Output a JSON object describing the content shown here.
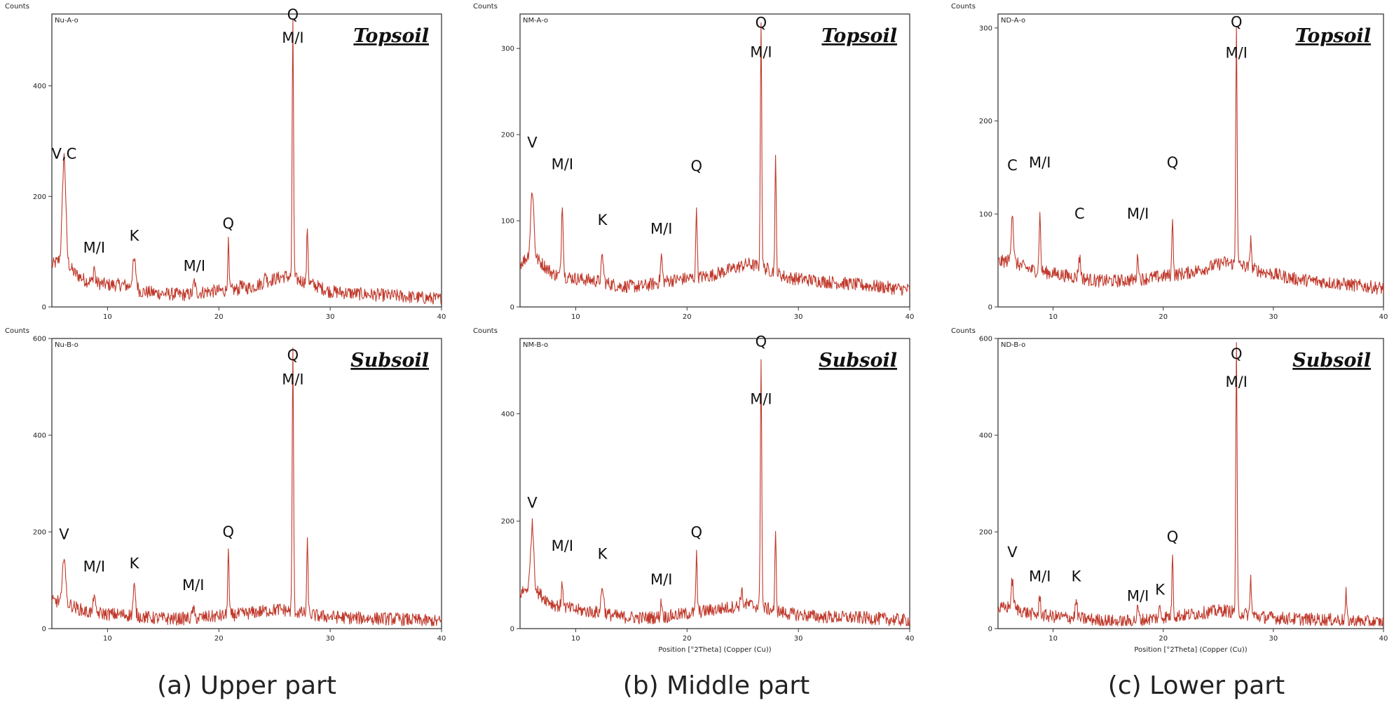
{
  "colors": {
    "trace": "#c0392b",
    "axis": "#3a3a3a",
    "text": "#222222"
  },
  "chart_data": [
    {
      "type": "line",
      "panel": "(a) Upper part",
      "code": "Nu-A-o",
      "soil_label": "Topsoil",
      "ylabel": "Counts",
      "xlabel": "",
      "xlim": [
        5,
        40
      ],
      "ylim": [
        0,
        530
      ],
      "yticks": [
        0,
        200,
        400
      ],
      "xticks": [
        10,
        20,
        30,
        40
      ],
      "base": [
        [
          5,
          75
        ],
        [
          6,
          90
        ],
        [
          7,
          62
        ],
        [
          8,
          48
        ],
        [
          10,
          40
        ],
        [
          11.5,
          40
        ],
        [
          13,
          28
        ],
        [
          15,
          24
        ],
        [
          17,
          22
        ],
        [
          19,
          28
        ],
        [
          21,
          30
        ],
        [
          23,
          36
        ],
        [
          24.5,
          48
        ],
        [
          26,
          56
        ],
        [
          28,
          44
        ],
        [
          30,
          28
        ],
        [
          33,
          23
        ],
        [
          36,
          20
        ],
        [
          40,
          14
        ]
      ],
      "peaks": [
        [
          6.1,
          185,
          0.15
        ],
        [
          8.8,
          30,
          0.07
        ],
        [
          12.4,
          50,
          0.16
        ],
        [
          17.8,
          22,
          0.09
        ],
        [
          20.85,
          85,
          0.06
        ],
        [
          26.65,
          470,
          0.06
        ],
        [
          27.95,
          100,
          0.06
        ],
        [
          22.0,
          15,
          0.06
        ],
        [
          24.2,
          18,
          0.06
        ]
      ],
      "annotations": [
        {
          "text": "V,C",
          "x": 6.1,
          "y": 268
        },
        {
          "text": "M/I",
          "x": 8.8,
          "y": 98
        },
        {
          "text": "K",
          "x": 12.4,
          "y": 120
        },
        {
          "text": "M/I",
          "x": 17.8,
          "y": 65
        },
        {
          "text": "Q",
          "x": 20.85,
          "y": 142
        },
        {
          "text": "Q",
          "x": 26.65,
          "y": 520
        },
        {
          "text": "M/I",
          "x": 26.65,
          "y": 478
        }
      ]
    },
    {
      "type": "line",
      "panel": "(b) Middle part",
      "code": "NM-A-o",
      "soil_label": "Topsoil",
      "ylabel": "Counts",
      "xlabel": "",
      "xlim": [
        5,
        40
      ],
      "ylim": [
        0,
        340
      ],
      "yticks": [
        0,
        100,
        200,
        300
      ],
      "xticks": [
        10,
        20,
        30,
        40
      ],
      "base": [
        [
          5,
          50
        ],
        [
          6,
          62
        ],
        [
          7,
          50
        ],
        [
          8,
          38
        ],
        [
          10,
          33
        ],
        [
          12,
          30
        ],
        [
          14,
          24
        ],
        [
          16,
          24
        ],
        [
          18,
          30
        ],
        [
          20,
          33
        ],
        [
          22,
          36
        ],
        [
          24,
          44
        ],
        [
          25.5,
          50
        ],
        [
          27,
          45
        ],
        [
          29,
          34
        ],
        [
          32,
          30
        ],
        [
          36,
          25
        ],
        [
          40,
          20
        ]
      ],
      "peaks": [
        [
          6.1,
          75,
          0.14
        ],
        [
          8.8,
          85,
          0.08
        ],
        [
          12.4,
          30,
          0.1
        ],
        [
          17.7,
          30,
          0.08
        ],
        [
          20.85,
          85,
          0.06
        ],
        [
          26.65,
          290,
          0.06
        ],
        [
          27.95,
          130,
          0.06
        ]
      ],
      "annotations": [
        {
          "text": "V",
          "x": 6.1,
          "y": 185
        },
        {
          "text": "M/I",
          "x": 8.8,
          "y": 160
        },
        {
          "text": "K",
          "x": 12.4,
          "y": 95
        },
        {
          "text": "M/I",
          "x": 17.7,
          "y": 85
        },
        {
          "text": "Q",
          "x": 20.85,
          "y": 158
        },
        {
          "text": "Q",
          "x": 26.65,
          "y": 324
        },
        {
          "text": "M/I",
          "x": 26.65,
          "y": 290
        }
      ]
    },
    {
      "type": "line",
      "panel": "(c) Lower part",
      "code": "ND-A-o",
      "soil_label": "Topsoil",
      "ylabel": "Counts",
      "xlabel": "",
      "xlim": [
        5,
        40
      ],
      "ylim": [
        0,
        315
      ],
      "yticks": [
        0,
        100,
        200,
        300
      ],
      "xticks": [
        10,
        20,
        30,
        40
      ],
      "base": [
        [
          5,
          48
        ],
        [
          6,
          50
        ],
        [
          7,
          45
        ],
        [
          8,
          40
        ],
        [
          10,
          36
        ],
        [
          12,
          32
        ],
        [
          14,
          28
        ],
        [
          16,
          28
        ],
        [
          18,
          30
        ],
        [
          20,
          33
        ],
        [
          22,
          36
        ],
        [
          24,
          42
        ],
        [
          25.5,
          48
        ],
        [
          27,
          45
        ],
        [
          29,
          38
        ],
        [
          32,
          30
        ],
        [
          36,
          25
        ],
        [
          40,
          20
        ]
      ],
      "peaks": [
        [
          6.3,
          55,
          0.1
        ],
        [
          8.8,
          60,
          0.07
        ],
        [
          12.4,
          22,
          0.1
        ],
        [
          17.7,
          25,
          0.08
        ],
        [
          20.85,
          65,
          0.06
        ],
        [
          26.65,
          260,
          0.06
        ],
        [
          27.95,
          35,
          0.06
        ]
      ],
      "annotations": [
        {
          "text": "C",
          "x": 6.3,
          "y": 147
        },
        {
          "text": "M/I",
          "x": 8.8,
          "y": 150
        },
        {
          "text": "C",
          "x": 12.4,
          "y": 95
        },
        {
          "text": "M/I",
          "x": 17.7,
          "y": 95
        },
        {
          "text": "Q",
          "x": 20.85,
          "y": 150
        },
        {
          "text": "Q",
          "x": 26.65,
          "y": 301
        },
        {
          "text": "M/I",
          "x": 26.65,
          "y": 268
        }
      ]
    },
    {
      "type": "line",
      "panel": "(a) Upper part",
      "code": "Nu-B-o",
      "soil_label": "Subsoil",
      "ylabel": "Counts",
      "xlabel": "",
      "xlim": [
        5,
        40
      ],
      "ylim": [
        0,
        600
      ],
      "yticks": [
        0,
        200,
        400,
        600
      ],
      "xticks": [
        10,
        20,
        30,
        40
      ],
      "base": [
        [
          5,
          55
        ],
        [
          6,
          58
        ],
        [
          7,
          45
        ],
        [
          8,
          35
        ],
        [
          10,
          30
        ],
        [
          12,
          28
        ],
        [
          14,
          22
        ],
        [
          16,
          20
        ],
        [
          18,
          22
        ],
        [
          20,
          26
        ],
        [
          22,
          30
        ],
        [
          24,
          36
        ],
        [
          25.5,
          40
        ],
        [
          27,
          34
        ],
        [
          29,
          26
        ],
        [
          32,
          22
        ],
        [
          36,
          20
        ],
        [
          40,
          14
        ]
      ],
      "peaks": [
        [
          6.1,
          100,
          0.12
        ],
        [
          8.8,
          45,
          0.07
        ],
        [
          12.4,
          60,
          0.1
        ],
        [
          17.7,
          20,
          0.08
        ],
        [
          20.85,
          135,
          0.06
        ],
        [
          26.65,
          545,
          0.06
        ],
        [
          27.95,
          145,
          0.06
        ]
      ],
      "annotations": [
        {
          "text": "V",
          "x": 6.1,
          "y": 185
        },
        {
          "text": "M/I",
          "x": 8.8,
          "y": 118
        },
        {
          "text": "K",
          "x": 12.4,
          "y": 125
        },
        {
          "text": "M/I",
          "x": 17.7,
          "y": 80
        },
        {
          "text": "Q",
          "x": 20.85,
          "y": 190
        },
        {
          "text": "Q",
          "x": 26.65,
          "y": 555
        },
        {
          "text": "M/I",
          "x": 26.65,
          "y": 505
        }
      ]
    },
    {
      "type": "line",
      "panel": "(b) Middle part",
      "code": "NM-B-o",
      "soil_label": "Subsoil",
      "ylabel": "Counts",
      "xlabel": "Position [°2Theta] (Copper (Cu))",
      "xlim": [
        5,
        40
      ],
      "ylim": [
        0,
        540
      ],
      "yticks": [
        0,
        200,
        400
      ],
      "xticks": [
        10,
        20,
        30,
        40
      ],
      "base": [
        [
          5,
          65
        ],
        [
          6,
          80
        ],
        [
          7,
          60
        ],
        [
          8,
          45
        ],
        [
          10,
          35
        ],
        [
          12,
          30
        ],
        [
          14,
          22
        ],
        [
          16,
          20
        ],
        [
          18,
          22
        ],
        [
          20,
          28
        ],
        [
          22,
          34
        ],
        [
          24,
          40
        ],
        [
          25.5,
          45
        ],
        [
          27,
          38
        ],
        [
          29,
          28
        ],
        [
          32,
          22
        ],
        [
          36,
          20
        ],
        [
          40,
          15
        ]
      ],
      "peaks": [
        [
          6.1,
          115,
          0.14
        ],
        [
          8.8,
          45,
          0.07
        ],
        [
          12.4,
          50,
          0.12
        ],
        [
          17.7,
          30,
          0.08
        ],
        [
          20.85,
          110,
          0.06
        ],
        [
          26.65,
          470,
          0.06
        ],
        [
          27.95,
          140,
          0.06
        ],
        [
          24.9,
          25,
          0.1
        ]
      ],
      "annotations": [
        {
          "text": "V",
          "x": 6.1,
          "y": 225
        },
        {
          "text": "M/I",
          "x": 8.8,
          "y": 145
        },
        {
          "text": "K",
          "x": 12.4,
          "y": 130
        },
        {
          "text": "M/I",
          "x": 17.7,
          "y": 82
        },
        {
          "text": "Q",
          "x": 20.85,
          "y": 170
        },
        {
          "text": "Q",
          "x": 26.65,
          "y": 525
        },
        {
          "text": "M/I",
          "x": 26.65,
          "y": 418
        }
      ]
    },
    {
      "type": "line",
      "panel": "(c) Lower part",
      "code": "ND-B-o",
      "soil_label": "Subsoil",
      "ylabel": "Counts",
      "xlabel": "Position [°2Theta] (Copper (Cu))",
      "xlim": [
        5,
        40
      ],
      "ylim": [
        0,
        600
      ],
      "yticks": [
        0,
        200,
        400,
        600
      ],
      "xticks": [
        10,
        20,
        30,
        40
      ],
      "base": [
        [
          5,
          40
        ],
        [
          6,
          45
        ],
        [
          7,
          38
        ],
        [
          8,
          30
        ],
        [
          10,
          25
        ],
        [
          12,
          22
        ],
        [
          14,
          18
        ],
        [
          16,
          14
        ],
        [
          18,
          18
        ],
        [
          20,
          24
        ],
        [
          22,
          28
        ],
        [
          24,
          34
        ],
        [
          25.5,
          38
        ],
        [
          27,
          32
        ],
        [
          29,
          24
        ],
        [
          32,
          20
        ],
        [
          36,
          18
        ],
        [
          40,
          12
        ]
      ],
      "peaks": [
        [
          6.3,
          55,
          0.1
        ],
        [
          8.8,
          40,
          0.07
        ],
        [
          12.1,
          35,
          0.09
        ],
        [
          17.7,
          25,
          0.08
        ],
        [
          19.7,
          20,
          0.08
        ],
        [
          20.85,
          130,
          0.06
        ],
        [
          26.65,
          545,
          0.06
        ],
        [
          27.95,
          80,
          0.06
        ],
        [
          36.6,
          55,
          0.06
        ]
      ],
      "annotations": [
        {
          "text": "V",
          "x": 6.3,
          "y": 148
        },
        {
          "text": "M/I",
          "x": 8.8,
          "y": 98
        },
        {
          "text": "K",
          "x": 12.1,
          "y": 98
        },
        {
          "text": "M/I",
          "x": 17.7,
          "y": 57
        },
        {
          "text": "K",
          "x": 19.7,
          "y": 70
        },
        {
          "text": "Q",
          "x": 20.85,
          "y": 180
        },
        {
          "text": "Q",
          "x": 26.65,
          "y": 558
        },
        {
          "text": "M/I",
          "x": 26.65,
          "y": 500
        }
      ]
    }
  ],
  "captions": {
    "a": "(a) Upper part",
    "b": "(b) Middle part",
    "c": "(c) Lower part"
  }
}
